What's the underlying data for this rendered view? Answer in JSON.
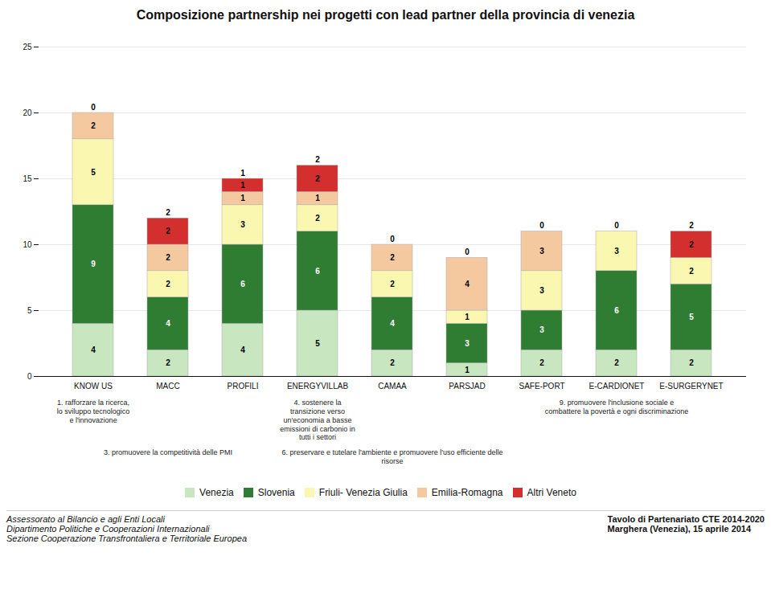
{
  "chart_data": {
    "type": "bar",
    "stacked": true,
    "title": "Composizione partnership nei progetti con lead partner della provincia di venezia",
    "categories": [
      "KNOW US",
      "MACC",
      "PROFILI",
      "ENERGYVILLAB",
      "CAMAA",
      "PARSJAD",
      "SAFE-PORT",
      "E-CARDIONET",
      "E-SURGERYNET"
    ],
    "series": [
      {
        "name": "Venezia",
        "color": "#c8e6c0",
        "values": [
          4,
          2,
          4,
          5,
          2,
          1,
          2,
          2,
          2
        ]
      },
      {
        "name": "Slovenia",
        "color": "#2e7d32",
        "values": [
          9,
          4,
          6,
          6,
          4,
          3,
          3,
          6,
          5
        ]
      },
      {
        "name": "Friuli- Venezia Giulia",
        "color": "#f9f7b0",
        "values": [
          5,
          2,
          3,
          2,
          2,
          1,
          3,
          3,
          2
        ]
      },
      {
        "name": "Emilia-Romagna",
        "color": "#f5c9a0",
        "values": [
          2,
          2,
          1,
          1,
          2,
          4,
          3,
          0,
          0
        ]
      },
      {
        "name": "Altri Veneto",
        "color": "#d32f2f",
        "values": [
          0,
          2,
          1,
          2,
          0,
          0,
          0,
          0,
          2
        ]
      }
    ],
    "ylim": [
      0,
      25
    ],
    "yticks": [
      0,
      5,
      10,
      15,
      20,
      25
    ],
    "grid": true,
    "data_labels": true,
    "legend": "bottom",
    "annotations": [
      {
        "x": "KNOW US",
        "text": "1. rafforzare la ricerca,\nlo sviluppo tecnologico\ne l'innovazione"
      },
      {
        "x": "MACC",
        "text": "3. promuovere la competitività delle PMI"
      },
      {
        "x": "ENERGYVILLAB",
        "text": "4. sostenere la\ntransizione verso\nun'economia a basse\nemissioni di carbonio in\ntutti i settori"
      },
      {
        "x": "CAMAA",
        "text": "6. preservare e tutelare l'ambiente e promuovere l'uso efficiente delle\nrisorse"
      },
      {
        "x": "E-CARDIONET",
        "text": "9. promuovere l'inclusione sociale e\ncombattere la povertà e ogni discriminazione"
      }
    ],
    "footer": {
      "left": [
        "Assessorato al Bilancio e agli Enti Locali",
        "Dipartimento Politiche e Cooperazioni Internazionali",
        "Sezione Cooperazione Transfrontaliera e Territoriale Europea"
      ],
      "right": [
        "Tavolo di Partenariato CTE 2014-2020",
        "Marghera (Venezia), 15 aprile 2014"
      ]
    }
  }
}
